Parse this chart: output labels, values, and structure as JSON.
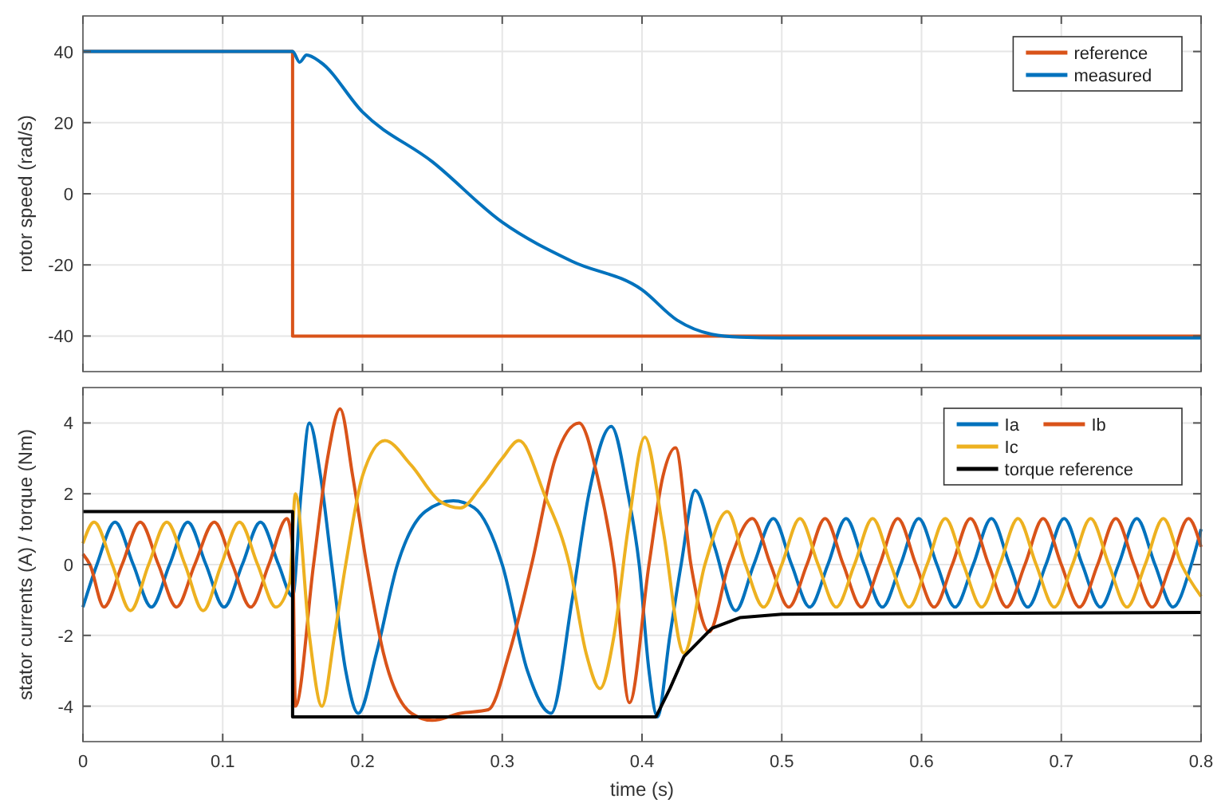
{
  "chart_data": [
    {
      "type": "line",
      "ylabel": "rotor speed (rad/s)",
      "xlim": [
        0,
        0.8
      ],
      "xticks": [
        0,
        0.1,
        0.2,
        0.3,
        0.4,
        0.5,
        0.6,
        0.7,
        0.8
      ],
      "ylim": [
        -50,
        50
      ],
      "yticks": [
        -40,
        -20,
        0,
        20,
        40
      ],
      "tick_labels": "y",
      "grid": true,
      "legend": "top right",
      "series": [
        {
          "name": "reference",
          "color": "#d95319",
          "x": [
            0,
            0.15,
            0.15,
            0.8
          ],
          "values": [
            40,
            40,
            -40,
            -40
          ]
        },
        {
          "name": "measured",
          "color": "#0072bd",
          "x": [
            0,
            0.15,
            0.155,
            0.16,
            0.17,
            0.2,
            0.25,
            0.3,
            0.35,
            0.4,
            0.425,
            0.45,
            0.47,
            0.5,
            0.8
          ],
          "values": [
            40,
            40,
            37,
            39,
            37,
            23,
            9,
            -8,
            -19,
            -27,
            -35.5,
            -39.5,
            -40.3,
            -40.5,
            -40.5
          ]
        }
      ]
    },
    {
      "type": "line",
      "xlabel": "time (s)",
      "ylabel": "stator currents (A) / torque (Nm)",
      "xlim": [
        0,
        0.8
      ],
      "xticks": [
        0,
        0.1,
        0.2,
        0.3,
        0.4,
        0.5,
        0.6,
        0.7,
        0.8
      ],
      "ylim": [
        -5,
        5
      ],
      "yticks": [
        -4,
        -2,
        0,
        2,
        4
      ],
      "grid": true,
      "legend": "top right",
      "series": [
        {
          "name": "Ia",
          "color": "#0072bd",
          "x": [
            0,
            0.01,
            0.023,
            0.036,
            0.049,
            0.062,
            0.075,
            0.088,
            0.101,
            0.114,
            0.127,
            0.14,
            0.15,
            0.156,
            0.162,
            0.17,
            0.178,
            0.188,
            0.197,
            0.21,
            0.225,
            0.245,
            0.265,
            0.28,
            0.3,
            0.318,
            0.335,
            0.35,
            0.362,
            0.378,
            0.39,
            0.398,
            0.405,
            0.411,
            0.42,
            0.428,
            0.438,
            0.452,
            0.467,
            0.48,
            0.494,
            0.507,
            0.52,
            0.533,
            0.546,
            0.559,
            0.572,
            0.585,
            0.598,
            0.611,
            0.624,
            0.637,
            0.65,
            0.663,
            0.676,
            0.689,
            0.702,
            0.715,
            0.728,
            0.741,
            0.754,
            0.767,
            0.78,
            0.793,
            0.8
          ],
          "values": [
            -1.2,
            0,
            1.2,
            0,
            -1.2,
            0,
            1.2,
            0,
            -1.2,
            0,
            1.2,
            0,
            -0.9,
            2,
            4,
            2.5,
            0,
            -3,
            -4.2,
            -2.5,
            0,
            1.5,
            1.8,
            1.6,
            0,
            -3,
            -4.2,
            -1,
            2,
            3.9,
            2,
            0,
            -3,
            -4.3,
            -2,
            0,
            2.1,
            0.5,
            -1.3,
            0,
            1.3,
            0,
            -1.2,
            0,
            1.3,
            0,
            -1.2,
            0,
            1.3,
            0,
            -1.2,
            0,
            1.3,
            0,
            -1.2,
            0,
            1.3,
            0,
            -1.2,
            0,
            1.3,
            0,
            -1.2,
            0,
            1
          ]
        },
        {
          "name": "Ib",
          "color": "#d95319",
          "x": [
            0,
            0.005,
            0.015,
            0.028,
            0.041,
            0.054,
            0.067,
            0.08,
            0.094,
            0.107,
            0.12,
            0.133,
            0.146,
            0.15,
            0.152,
            0.165,
            0.175,
            0.184,
            0.193,
            0.203,
            0.215,
            0.235,
            0.25,
            0.27,
            0.29,
            0.305,
            0.321,
            0.338,
            0.355,
            0.368,
            0.38,
            0.391,
            0.405,
            0.415,
            0.424,
            0.435,
            0.448,
            0.462,
            0.479,
            0.492,
            0.505,
            0.518,
            0.531,
            0.544,
            0.557,
            0.57,
            0.583,
            0.596,
            0.609,
            0.622,
            0.635,
            0.648,
            0.661,
            0.674,
            0.687,
            0.7,
            0.713,
            0.726,
            0.739,
            0.752,
            0.765,
            0.778,
            0.791,
            0.8
          ],
          "values": [
            0.3,
            0,
            -1.2,
            0,
            1.2,
            0,
            -1.2,
            0,
            1.2,
            0,
            -1.2,
            0,
            1.3,
            0.5,
            -4,
            0,
            3,
            4.4,
            2.5,
            0,
            -2.5,
            -4.2,
            -4.4,
            -4.2,
            -4.1,
            -2.5,
            0,
            3,
            4,
            2.5,
            0,
            -3.9,
            0,
            2.5,
            3.3,
            0,
            -1.9,
            0,
            1.3,
            0,
            -1.2,
            0,
            1.3,
            0,
            -1.2,
            0,
            1.3,
            0,
            -1.2,
            0,
            1.3,
            0,
            -1.2,
            0,
            1.3,
            0,
            -1.2,
            0,
            1.3,
            0,
            -1.2,
            0,
            1.3,
            0.5
          ]
        },
        {
          "name": "Ic",
          "color": "#edb120",
          "x": [
            0,
            0.008,
            0.021,
            0.034,
            0.047,
            0.06,
            0.073,
            0.086,
            0.099,
            0.112,
            0.125,
            0.138,
            0.148,
            0.152,
            0.162,
            0.171,
            0.18,
            0.188,
            0.2,
            0.216,
            0.235,
            0.255,
            0.27,
            0.285,
            0.3,
            0.312,
            0.33,
            0.348,
            0.36,
            0.37,
            0.38,
            0.39,
            0.402,
            0.415,
            0.43,
            0.445,
            0.461,
            0.474,
            0.487,
            0.5,
            0.513,
            0.526,
            0.539,
            0.552,
            0.565,
            0.578,
            0.591,
            0.604,
            0.617,
            0.63,
            0.643,
            0.656,
            0.669,
            0.682,
            0.695,
            0.708,
            0.721,
            0.734,
            0.747,
            0.76,
            0.773,
            0.786,
            0.8
          ],
          "values": [
            0.6,
            1.2,
            0,
            -1.3,
            0,
            1.2,
            0,
            -1.3,
            0,
            1.2,
            0,
            -1.2,
            -0.5,
            2,
            -2,
            -4,
            -2,
            0,
            2.5,
            3.5,
            2.8,
            1.8,
            1.6,
            2.2,
            3,
            3.5,
            2,
            0,
            -2.5,
            -3.5,
            -2,
            1,
            3.6,
            1,
            -2.5,
            0,
            1.5,
            0,
            -1.2,
            0,
            1.3,
            0,
            -1.2,
            0,
            1.3,
            0,
            -1.2,
            0,
            1.3,
            0,
            -1.2,
            0,
            1.3,
            0,
            -1.2,
            0,
            1.3,
            0,
            -1.2,
            0,
            1.3,
            0,
            -0.9
          ]
        },
        {
          "name": "torque reference",
          "color": "#000000",
          "x": [
            0,
            0.15,
            0.15,
            0.41,
            0.42,
            0.43,
            0.45,
            0.47,
            0.5,
            0.8
          ],
          "values": [
            1.5,
            1.5,
            -4.3,
            -4.3,
            -3.5,
            -2.6,
            -1.8,
            -1.5,
            -1.4,
            -1.35
          ]
        }
      ]
    }
  ]
}
